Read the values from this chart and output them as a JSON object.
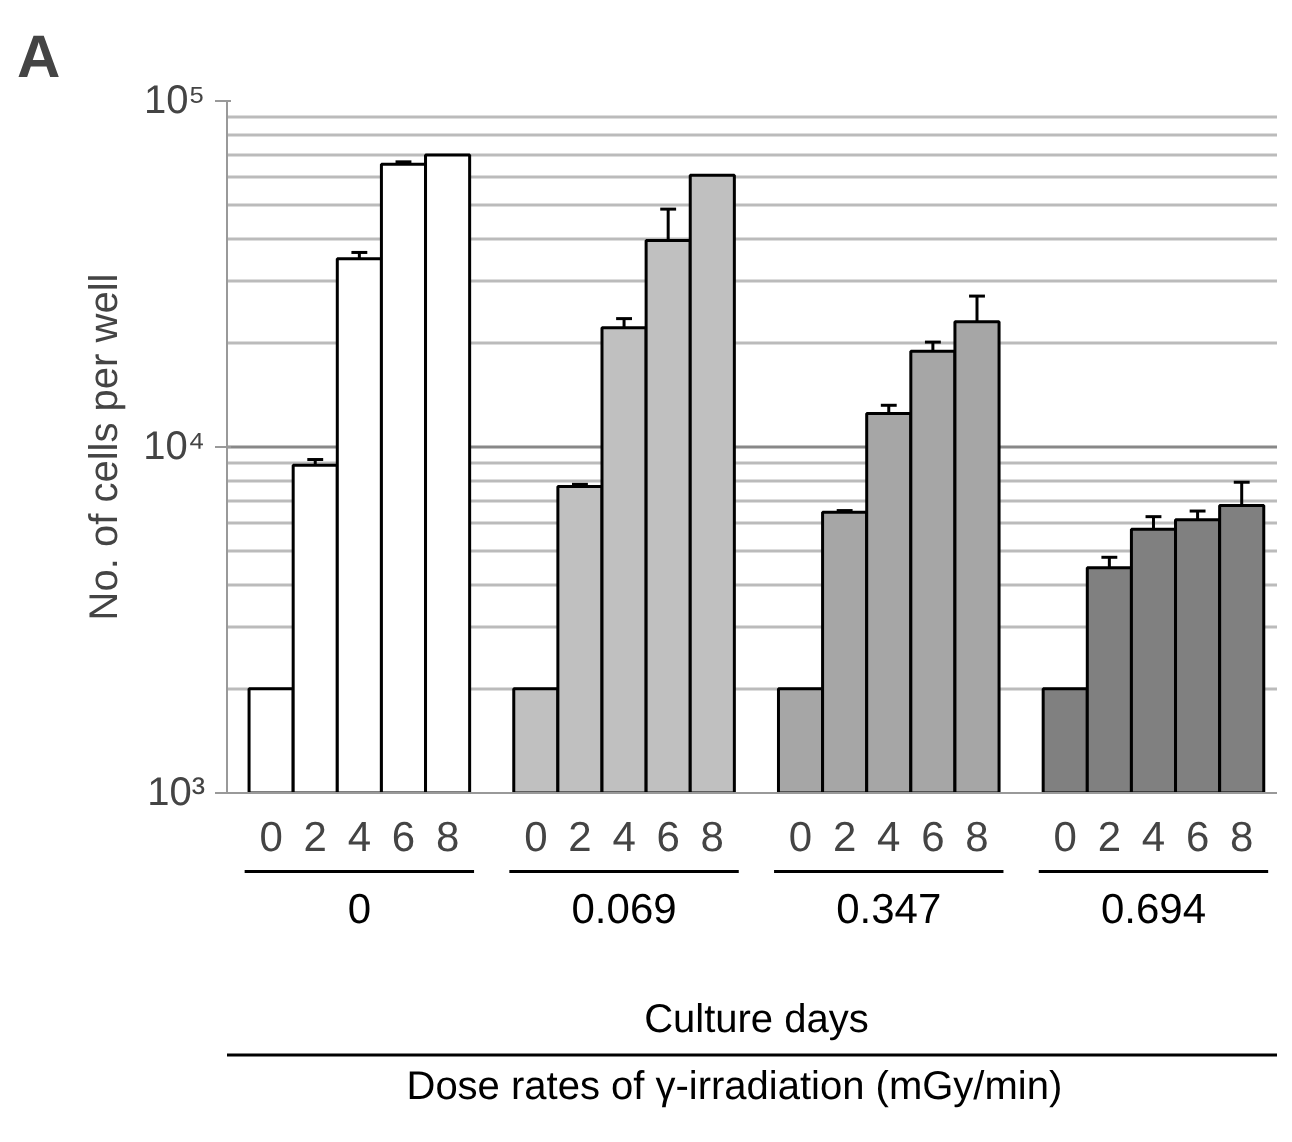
{
  "chart_data": {
    "type": "bar",
    "title": "A",
    "xlabel": "Culture days",
    "ylabel": "No. of cells per well",
    "categories": [
      "0",
      "2",
      "4",
      "6",
      "8",
      null,
      "0",
      "2",
      "4",
      "6",
      "8",
      null,
      "0",
      "2",
      "4",
      "6",
      "8",
      null,
      "0",
      "2",
      "4",
      "6",
      "8"
    ],
    "values": [
      2000,
      8860,
      35000,
      65600,
      69800,
      null,
      2000,
      7690,
      22100,
      39500,
      61000,
      null,
      2000,
      6480,
      12500,
      18900,
      23000,
      null,
      2000,
      4480,
      5780,
      6160,
      6780
    ],
    "colors": [
      "#ffffff",
      "#ffffff",
      "#ffffff",
      "#ffffff",
      "#ffffff",
      null,
      "#c0c0c0",
      "#c0c0c0",
      "#c0c0c0",
      "#c0c0c0",
      "#c0c0c0",
      null,
      "#a6a6a6",
      "#a6a6a6",
      "#a6a6a6",
      "#a6a6a6",
      "#a6a6a6",
      null,
      "#808080",
      "#808080",
      "#808080",
      "#808080",
      "#808080"
    ],
    "errors": [
      null,
      [
        8860,
        9200
      ],
      [
        35000,
        36500
      ],
      [
        65600,
        66700
      ],
      null,
      null,
      null,
      [
        7690,
        7800
      ],
      [
        22100,
        23500
      ],
      [
        39500,
        48700
      ],
      null,
      null,
      null,
      [
        6480,
        6550
      ],
      [
        12500,
        13200
      ],
      [
        18900,
        20100
      ],
      [
        23000,
        27300
      ],
      null,
      null,
      [
        4480,
        4800
      ],
      [
        5780,
        6290
      ],
      [
        6160,
        6530
      ],
      [
        6780,
        7910
      ]
    ],
    "annotations": [
      "0",
      "0.069",
      "0.347",
      "0.694",
      "Dose rates of γ-irradiation (mGy/min)"
    ],
    "log": "y",
    "ylim": [
      1000,
      100000
    ],
    "yticks": [
      {
        "value": 1000,
        "label": "10³"
      },
      {
        "value": 10000,
        "label": "10⁴"
      },
      {
        "value": 100000,
        "label": "10⁵"
      }
    ],
    "grid": "y"
  }
}
